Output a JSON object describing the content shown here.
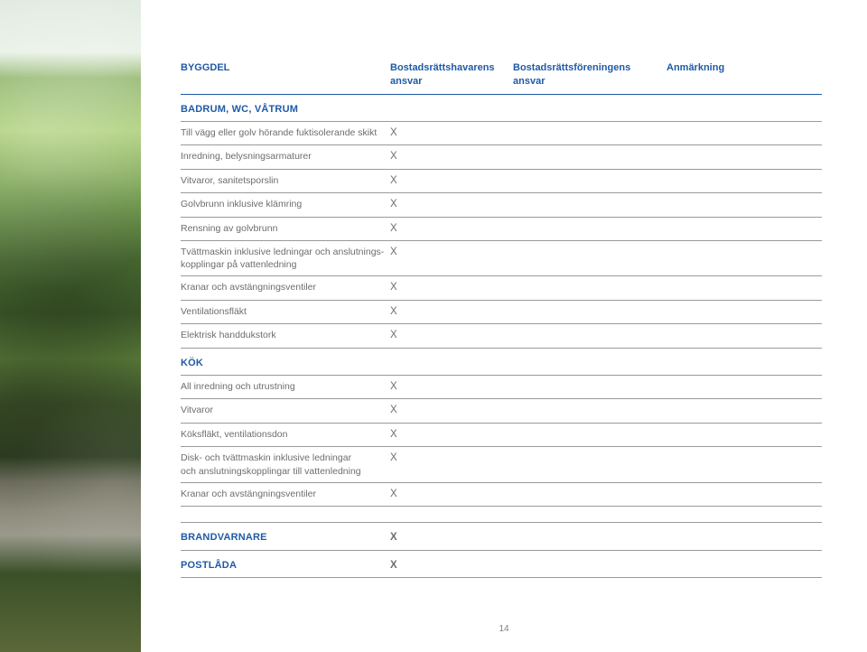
{
  "header": {
    "col_label": "BYGGDEL",
    "col_a_line1": "Bostadsrättshavarens",
    "col_a_line2": "ansvar",
    "col_b_line1": "Bostadsrättsföreningens",
    "col_b_line2": "ansvar",
    "col_note": "Anmärkning"
  },
  "colors": {
    "heading": "#1f5aa6",
    "body_text": "#6d6d6d",
    "rule": "#9a9a9a"
  },
  "mark": "X",
  "sections": [
    {
      "title": "BADRUM, WC, VÅTRUM",
      "rows": [
        {
          "label": "Till vägg eller golv hörande fuktisolerande skikt",
          "a": true,
          "b": false,
          "note": ""
        },
        {
          "label": "Inredning, belysningsarmaturer",
          "a": true,
          "b": false,
          "note": ""
        },
        {
          "label": "Vitvaror, sanitetsporslin",
          "a": true,
          "b": false,
          "note": ""
        },
        {
          "label": "Golvbrunn inklusive klämring",
          "a": true,
          "b": false,
          "note": ""
        },
        {
          "label": "Rensning av golvbrunn",
          "a": true,
          "b": false,
          "note": ""
        },
        {
          "label": "Tvättmaskin inklusive ledningar och anslutnings-\nkopplingar på vattenledning",
          "a": true,
          "b": false,
          "note": ""
        },
        {
          "label": "Kranar och avstängningsventiler",
          "a": true,
          "b": false,
          "note": ""
        },
        {
          "label": "Ventilationsfläkt",
          "a": true,
          "b": false,
          "note": ""
        },
        {
          "label": "Elektrisk handdukstork",
          "a": true,
          "b": false,
          "note": ""
        }
      ]
    },
    {
      "title": "KÖK",
      "rows": [
        {
          "label": "All inredning och utrustning",
          "a": true,
          "b": false,
          "note": ""
        },
        {
          "label": "Vitvaror",
          "a": true,
          "b": false,
          "note": ""
        },
        {
          "label": "Köksfläkt, ventilationsdon",
          "a": true,
          "b": false,
          "note": ""
        },
        {
          "label": "Disk- och tvättmaskin inklusive ledningar\noch anslutningskopplingar till vattenledning",
          "a": true,
          "b": false,
          "note": ""
        },
        {
          "label": "Kranar och avstängningsventiler",
          "a": true,
          "b": false,
          "note": ""
        }
      ]
    }
  ],
  "standalone": [
    {
      "title": "BRANDVARNARE",
      "a": true,
      "b": false,
      "note": ""
    },
    {
      "title": "POSTLÅDA",
      "a": true,
      "b": false,
      "note": ""
    }
  ],
  "page_number": "14"
}
